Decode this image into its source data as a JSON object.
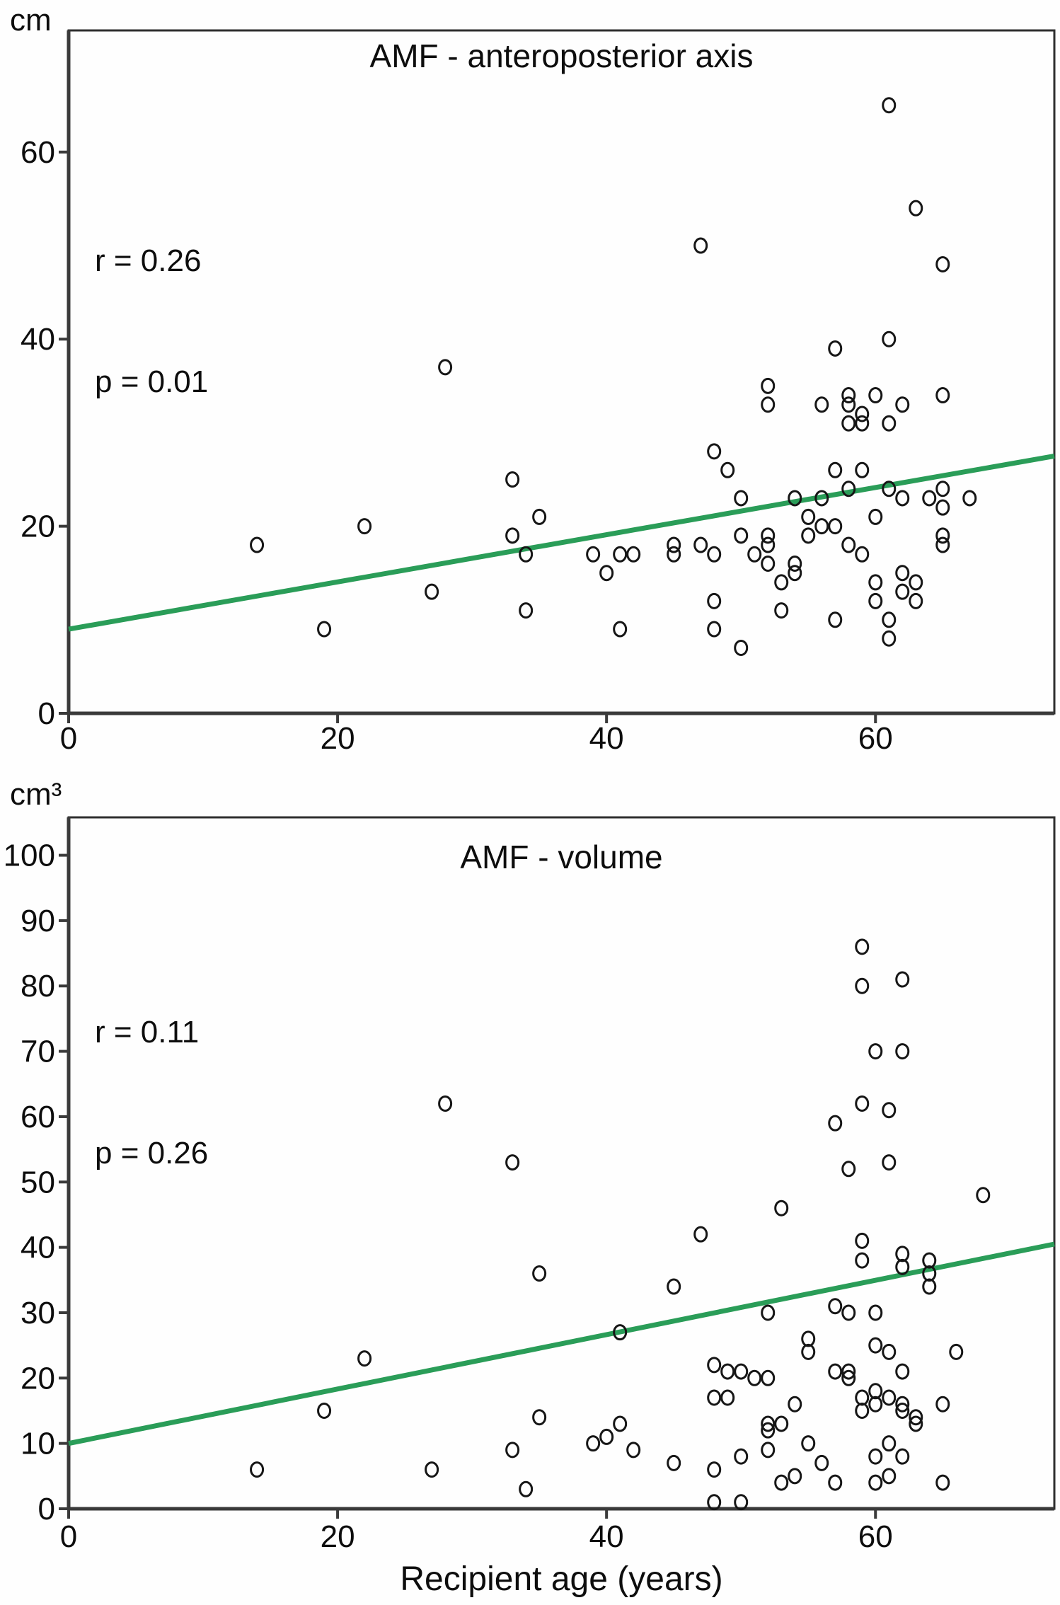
{
  "figure": {
    "x_axis_label": "Recipient age (years)"
  },
  "chart_data": [
    {
      "type": "scatter",
      "title": "AMF - anteroposterior axis",
      "unit_label": "cm",
      "r_label": "r = 0.26",
      "p_label": "p = 0.01",
      "xlabel": "Recipient age (years)",
      "ylabel": "cm",
      "xlim": [
        0,
        73.3
      ],
      "ylim": [
        0,
        73
      ],
      "xticks": [
        0,
        20,
        40,
        60
      ],
      "yticks": [
        0,
        20,
        40,
        60
      ],
      "grid": false,
      "legend": "none",
      "marker": "open-circle",
      "marker_color": "#161616",
      "trend_color": "#2a9d58",
      "trend_line": {
        "x": [
          0,
          73.3
        ],
        "y": [
          9.0,
          27.5
        ]
      },
      "points": [
        [
          14,
          18
        ],
        [
          19,
          9
        ],
        [
          22,
          20
        ],
        [
          27,
          13
        ],
        [
          28,
          37
        ],
        [
          33,
          25
        ],
        [
          33,
          19
        ],
        [
          34,
          17
        ],
        [
          34,
          11
        ],
        [
          35,
          21
        ],
        [
          39,
          17
        ],
        [
          40,
          15
        ],
        [
          41,
          17
        ],
        [
          41,
          9
        ],
        [
          42,
          17
        ],
        [
          45,
          18
        ],
        [
          45,
          17
        ],
        [
          47,
          50
        ],
        [
          47,
          18
        ],
        [
          48,
          17
        ],
        [
          48,
          28
        ],
        [
          48,
          12
        ],
        [
          48,
          9
        ],
        [
          49,
          26
        ],
        [
          50,
          23
        ],
        [
          50,
          19
        ],
        [
          50,
          7
        ],
        [
          51,
          17
        ],
        [
          52,
          19
        ],
        [
          52,
          18
        ],
        [
          52,
          16
        ],
        [
          52,
          35
        ],
        [
          52,
          33
        ],
        [
          53,
          14
        ],
        [
          53,
          11
        ],
        [
          54,
          16
        ],
        [
          54,
          15
        ],
        [
          54,
          23
        ],
        [
          55,
          21
        ],
        [
          55,
          19
        ],
        [
          56,
          20
        ],
        [
          56,
          23
        ],
        [
          56,
          33
        ],
        [
          57,
          20
        ],
        [
          57,
          39
        ],
        [
          57,
          26
        ],
        [
          57,
          10
        ],
        [
          58,
          18
        ],
        [
          58,
          34
        ],
        [
          58,
          33
        ],
        [
          58,
          31
        ],
        [
          58,
          24
        ],
        [
          59,
          17
        ],
        [
          59,
          32
        ],
        [
          59,
          31
        ],
        [
          59,
          26
        ],
        [
          60,
          14
        ],
        [
          60,
          12
        ],
        [
          60,
          21
        ],
        [
          60,
          34
        ],
        [
          61,
          65
        ],
        [
          61,
          40
        ],
        [
          61,
          31
        ],
        [
          61,
          24
        ],
        [
          61,
          10
        ],
        [
          61,
          8
        ],
        [
          62,
          23
        ],
        [
          62,
          15
        ],
        [
          62,
          13
        ],
        [
          62,
          33
        ],
        [
          63,
          54
        ],
        [
          63,
          14
        ],
        [
          63,
          12
        ],
        [
          64,
          23
        ],
        [
          65,
          48
        ],
        [
          65,
          34
        ],
        [
          65,
          24
        ],
        [
          65,
          22
        ],
        [
          65,
          19
        ],
        [
          65,
          18
        ],
        [
          67,
          23
        ]
      ]
    },
    {
      "type": "scatter",
      "title": "AMF - volume",
      "unit_label": "cm³",
      "r_label": "r = 0.11",
      "p_label": "p = 0.26",
      "xlabel": "Recipient age (years)",
      "ylabel": "cm³",
      "xlim": [
        0,
        73.3
      ],
      "ylim": [
        0,
        105.8
      ],
      "xticks": [
        0,
        20,
        40,
        60
      ],
      "yticks": [
        0,
        10,
        20,
        30,
        40,
        50,
        60,
        70,
        80,
        90,
        100
      ],
      "grid": false,
      "legend": "none",
      "marker": "open-circle",
      "marker_color": "#161616",
      "trend_color": "#2a9d58",
      "trend_line": {
        "x": [
          0,
          73.3
        ],
        "y": [
          10.0,
          40.5
        ]
      },
      "points": [
        [
          14,
          6
        ],
        [
          19,
          15
        ],
        [
          22,
          23
        ],
        [
          27,
          6
        ],
        [
          28,
          62
        ],
        [
          33,
          53
        ],
        [
          33,
          9
        ],
        [
          34,
          3
        ],
        [
          35,
          36
        ],
        [
          35,
          14
        ],
        [
          39,
          10
        ],
        [
          40,
          11
        ],
        [
          41,
          27
        ],
        [
          41,
          13
        ],
        [
          42,
          9
        ],
        [
          45,
          34
        ],
        [
          45,
          7
        ],
        [
          47,
          42
        ],
        [
          48,
          22
        ],
        [
          48,
          17
        ],
        [
          49,
          17
        ],
        [
          48,
          6
        ],
        [
          48,
          1
        ],
        [
          49,
          21
        ],
        [
          50,
          21
        ],
        [
          50,
          8
        ],
        [
          50,
          1
        ],
        [
          51,
          20
        ],
        [
          52,
          20
        ],
        [
          52,
          30
        ],
        [
          52,
          13
        ],
        [
          52,
          12
        ],
        [
          53,
          13
        ],
        [
          52,
          9
        ],
        [
          53,
          46
        ],
        [
          53,
          4
        ],
        [
          54,
          16
        ],
        [
          54,
          5
        ],
        [
          55,
          26
        ],
        [
          55,
          24
        ],
        [
          55,
          10
        ],
        [
          56,
          7
        ],
        [
          57,
          59
        ],
        [
          57,
          31
        ],
        [
          57,
          21
        ],
        [
          57,
          4
        ],
        [
          58,
          52
        ],
        [
          58,
          30
        ],
        [
          58,
          21
        ],
        [
          58,
          20
        ],
        [
          59,
          86
        ],
        [
          59,
          80
        ],
        [
          59,
          62
        ],
        [
          59,
          41
        ],
        [
          59,
          38
        ],
        [
          59,
          17
        ],
        [
          59,
          15
        ],
        [
          60,
          70
        ],
        [
          60,
          30
        ],
        [
          60,
          25
        ],
        [
          60,
          18
        ],
        [
          60,
          16
        ],
        [
          60,
          8
        ],
        [
          60,
          4
        ],
        [
          61,
          61
        ],
        [
          61,
          53
        ],
        [
          61,
          24
        ],
        [
          61,
          17
        ],
        [
          61,
          10
        ],
        [
          61,
          5
        ],
        [
          62,
          81
        ],
        [
          62,
          70
        ],
        [
          62,
          39
        ],
        [
          62,
          37
        ],
        [
          62,
          21
        ],
        [
          62,
          16
        ],
        [
          62,
          15
        ],
        [
          62,
          8
        ],
        [
          63,
          14
        ],
        [
          63,
          13
        ],
        [
          64,
          38
        ],
        [
          64,
          36
        ],
        [
          64,
          34
        ],
        [
          65,
          16
        ],
        [
          65,
          4
        ],
        [
          66,
          24
        ],
        [
          68,
          48
        ]
      ]
    }
  ]
}
